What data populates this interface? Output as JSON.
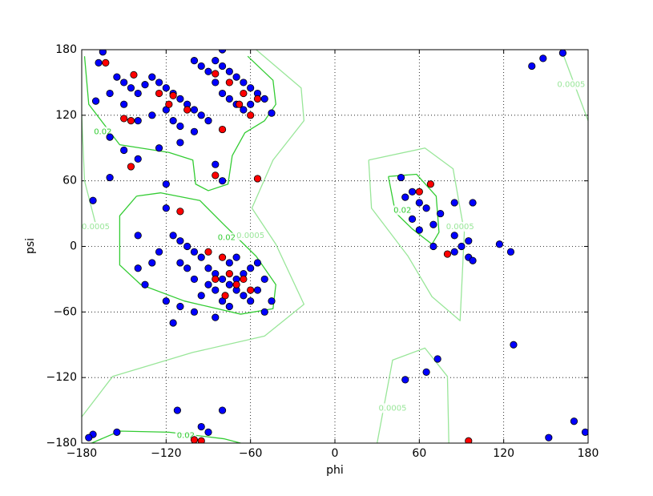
{
  "chart_data": {
    "type": "scatter",
    "xlabel": "phi",
    "ylabel": "psi",
    "xlim": [
      -180,
      180
    ],
    "ylim": [
      -180,
      180
    ],
    "xticks": [
      {
        "value": -180,
        "label": "−180"
      },
      {
        "value": -120,
        "label": "−120"
      },
      {
        "value": -60,
        "label": "−60"
      },
      0,
      60,
      120,
      180
    ],
    "yticks": [
      {
        "value": -180,
        "label": "−180"
      },
      {
        "value": -120,
        "label": "−120"
      },
      {
        "value": -60,
        "label": "−60"
      },
      0,
      60,
      120,
      180
    ],
    "grid": true,
    "series": [
      {
        "color": "#0000ff",
        "x": [
          -165,
          -168,
          -155,
          -150,
          -145,
          -140,
          -135,
          -130,
          -125,
          -120,
          -115,
          -110,
          -105,
          -100,
          -95,
          -90,
          -85,
          -80,
          -75,
          -70,
          -65,
          -60,
          -55,
          -50,
          -85,
          -80,
          -75,
          -70,
          -65,
          -60,
          -90,
          -95,
          -100,
          -120,
          -115,
          -110,
          -130,
          -140,
          -150,
          -160,
          -170,
          -160,
          -150,
          -140,
          -125,
          -110,
          -100,
          -85,
          -80,
          -160,
          -120,
          -80,
          -45,
          -120,
          -115,
          -110,
          -105,
          -100,
          -95,
          -90,
          -85,
          -80,
          -75,
          -70,
          -65,
          -60,
          -55,
          -50,
          -85,
          -80,
          -75,
          -70,
          -65,
          -60,
          -55,
          -75,
          -70,
          -90,
          -95,
          -100,
          -105,
          -110,
          -130,
          -135,
          -140,
          -120,
          -110,
          -100,
          -115,
          -85,
          -45,
          -50,
          -140,
          -125,
          47,
          50,
          55,
          60,
          65,
          55,
          60,
          70,
          70,
          75,
          85,
          90,
          95,
          85,
          95,
          98,
          98,
          117,
          125,
          85,
          -172,
          -172,
          -155,
          -112,
          -95,
          -90,
          -80,
          152,
          178,
          140,
          148,
          162,
          127,
          50,
          65,
          73,
          170,
          -175
        ],
        "y": [
          178,
          168,
          155,
          150,
          145,
          140,
          148,
          155,
          150,
          145,
          140,
          135,
          130,
          125,
          120,
          115,
          170,
          165,
          160,
          155,
          150,
          145,
          140,
          135,
          150,
          140,
          135,
          130,
          125,
          130,
          160,
          165,
          170,
          125,
          115,
          110,
          120,
          115,
          130,
          140,
          133,
          100,
          88,
          80,
          90,
          95,
          105,
          75,
          60,
          63,
          57,
          180,
          122,
          35,
          10,
          5,
          0,
          -5,
          -10,
          -20,
          -25,
          -30,
          -35,
          -40,
          -45,
          -50,
          -40,
          -30,
          -40,
          -50,
          -55,
          -30,
          -25,
          -20,
          -15,
          -15,
          -10,
          -35,
          -45,
          -30,
          -20,
          -15,
          -15,
          -35,
          -20,
          -50,
          -55,
          -60,
          -70,
          -65,
          -50,
          -60,
          10,
          -5,
          63,
          45,
          50,
          40,
          35,
          25,
          15,
          20,
          0,
          30,
          10,
          0,
          5,
          -5,
          -10,
          -13,
          40,
          2,
          -5,
          40,
          42,
          -172,
          -170,
          -150,
          -165,
          -170,
          -150,
          -175,
          -170,
          165,
          172,
          177,
          -90,
          -122,
          -115,
          -103,
          -160,
          -175
        ]
      },
      {
        "color": "#ff0000",
        "x": [
          -163,
          -143,
          -125,
          -118,
          -105,
          -145,
          -145,
          -150,
          -115,
          -85,
          -75,
          -65,
          -60,
          -55,
          -80,
          -68,
          -85,
          -55,
          -110,
          -90,
          -80,
          -75,
          -70,
          -65,
          -78,
          -60,
          -85,
          -95,
          68,
          60,
          80,
          95,
          -100
        ],
        "y": [
          168,
          157,
          140,
          130,
          125,
          115,
          73,
          117,
          138,
          158,
          150,
          140,
          120,
          135,
          107,
          130,
          65,
          62,
          32,
          -5,
          -10,
          -25,
          -35,
          -30,
          -45,
          -40,
          -30,
          -178,
          57,
          50,
          -7,
          -178,
          -177
        ]
      }
    ],
    "contours": [
      {
        "color": "#33cc33",
        "x": [
          -178,
          -175,
          -153,
          -118,
          -101,
          -99,
          -90,
          -76,
          -73,
          -64,
          -50,
          -42,
          -44,
          -62
        ],
        "y": [
          174,
          130,
          93,
          86,
          79,
          57,
          51,
          57,
          83,
          104,
          115,
          130,
          152,
          174
        ]
      },
      {
        "color": "#33cc33",
        "x": [
          -141,
          -153,
          -153,
          -138,
          -107,
          -67,
          -44,
          -42,
          -56,
          -79,
          -96,
          -124,
          -141
        ],
        "y": [
          46,
          28,
          -17,
          -35,
          -50,
          -62,
          -57,
          -35,
          -9,
          20,
          42,
          49,
          46
        ]
      },
      {
        "color": "#33cc33",
        "x": [
          38,
          58,
          72,
          74,
          69,
          55,
          43,
          38
        ],
        "y": [
          64,
          66,
          46,
          13,
          2,
          16,
          31,
          64
        ]
      },
      {
        "color": "#33cc33",
        "x": [
          -173,
          -153,
          -118,
          -79,
          -67
        ],
        "y": [
          -180,
          -169,
          -170,
          -176,
          -180
        ]
      },
      {
        "color": "#99e699",
        "x": [
          -56,
          -24,
          -22,
          -44,
          -59,
          -42,
          -22,
          -50,
          -101,
          -158,
          -180
        ],
        "y": [
          180,
          145,
          115,
          79,
          35,
          2,
          -53,
          -82,
          -97,
          -119,
          -156
        ]
      },
      {
        "color": "#99e699",
        "x": [
          24,
          64,
          84,
          92,
          89,
          69,
          52,
          26,
          24
        ],
        "y": [
          79,
          90,
          71,
          13,
          -68,
          -46,
          -9,
          35,
          79
        ]
      },
      {
        "color": "#99e699",
        "x": [
          30,
          41,
          64,
          80,
          81
        ],
        "y": [
          -180,
          -104,
          -93,
          -119,
          -180
        ]
      },
      {
        "color": "#99e699",
        "x": [
          161,
          180
        ],
        "y": [
          180,
          115
        ]
      },
      {
        "color": "#99e699",
        "x": [
          -180,
          -178,
          -170
        ],
        "y": [
          120,
          60,
          20
        ]
      }
    ],
    "annotations": [
      {
        "text": "0.02",
        "x": -165,
        "y": 105,
        "color": "#33cc33"
      },
      {
        "text": "0.02",
        "x": -77,
        "y": 8,
        "color": "#33cc33"
      },
      {
        "text": "0.02",
        "x": 48,
        "y": 33,
        "color": "#33cc33"
      },
      {
        "text": "0.02",
        "x": -106,
        "y": -173,
        "color": "#33cc33"
      },
      {
        "text": "0.0005",
        "x": -170,
        "y": 18,
        "color": "#99e699"
      },
      {
        "text": "0.0005",
        "x": -60,
        "y": 10,
        "color": "#99e699"
      },
      {
        "text": "0.0005",
        "x": 89,
        "y": 18,
        "color": "#99e699"
      },
      {
        "text": "0.0005",
        "x": 41,
        "y": -148,
        "color": "#99e699"
      },
      {
        "text": "0.0005",
        "x": 168,
        "y": 148,
        "color": "#99e699"
      }
    ]
  }
}
